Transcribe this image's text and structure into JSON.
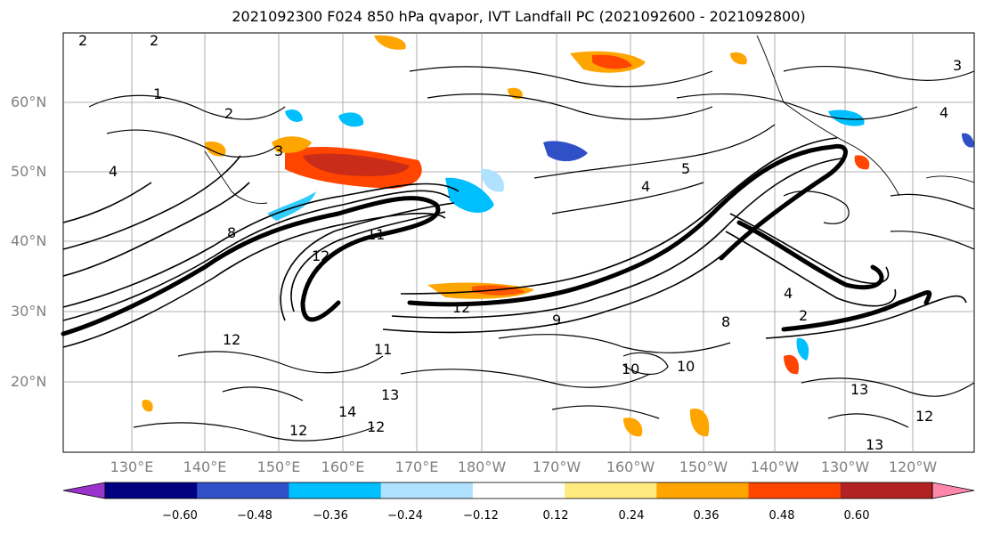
{
  "title": "2021092300 F024 850 hPa qvapor, IVT Landfall PC (2021092600 - 2021092800)",
  "lat_labels": [
    "60°N",
    "50°N",
    "40°N",
    "30°N",
    "20°N"
  ],
  "lon_labels": [
    "130°E",
    "140°E",
    "150°E",
    "160°E",
    "170°E",
    "180°W",
    "170°W",
    "160°W",
    "150°W",
    "140°W",
    "130°W",
    "120°W"
  ],
  "colorbar": {
    "colors": [
      "#9933cc",
      "#000080",
      "#3050c8",
      "#00bfff",
      "#b0e2ff",
      "#ffffff",
      "#ffeb80",
      "#ffa500",
      "#ff4500",
      "#b22222",
      "#ff88aa"
    ],
    "ticks": [
      "−0.60",
      "−0.48",
      "−0.36",
      "−0.24",
      "−0.12",
      "0.12",
      "0.24",
      "0.36",
      "0.48",
      "0.60"
    ]
  },
  "contour_labels": [
    "2",
    "2",
    "1",
    "3",
    "2",
    "4",
    "8",
    "11",
    "12",
    "12",
    "11",
    "12",
    "13",
    "14",
    "12",
    "12",
    "13",
    "13",
    "12",
    "10",
    "9",
    "8",
    "4",
    "5",
    "4",
    "2",
    "3",
    "4",
    "10"
  ],
  "icons": [
    "colorbar-arrow-left-icon",
    "colorbar-arrow-right-icon"
  ]
}
